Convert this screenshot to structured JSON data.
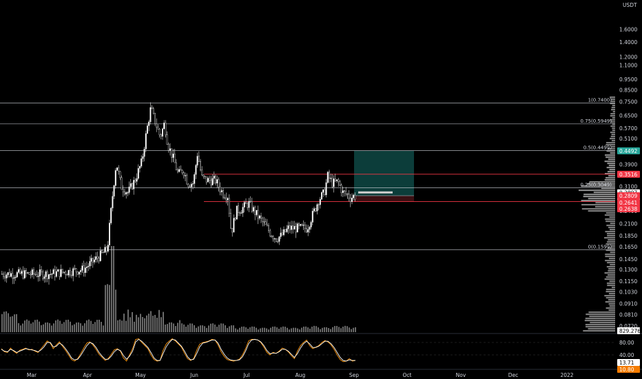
{
  "chart_data": [
    {
      "type": "candlestick",
      "title": "",
      "currency_label": "USDT",
      "scale": "log",
      "ylim": [
        0.0685,
        2.05
      ],
      "price_ticks": [
        "1.6000",
        "1.4000",
        "1.2000",
        "1.1000",
        "0.9500",
        "0.8500",
        "0.7500",
        "0.6500",
        "0.5700",
        "0.5100",
        "0.3900",
        "0.3100",
        "0.2400",
        "0.2100",
        "0.1850",
        "0.1650",
        "0.1450",
        "0.1300",
        "0.1150",
        "0.1030",
        "0.0910",
        "0.0810",
        "0.0720"
      ],
      "time_ticks": [
        "Mar",
        "Apr",
        "May",
        "Jun",
        "Jul",
        "Aug",
        "Sep",
        "Oct",
        "Nov",
        "Dec",
        "2022"
      ],
      "series_path": [
        [
          20,
          0.124
        ],
        [
          70,
          0.124
        ],
        [
          120,
          0.13
        ],
        [
          155,
          0.16
        ],
        [
          163,
          0.29
        ],
        [
          168,
          0.4
        ],
        [
          175,
          0.31
        ],
        [
          185,
          0.29
        ],
        [
          195,
          0.33
        ],
        [
          205,
          0.4
        ],
        [
          212,
          0.55
        ],
        [
          218,
          0.7
        ],
        [
          225,
          0.6
        ],
        [
          232,
          0.52
        ],
        [
          238,
          0.6
        ],
        [
          243,
          0.48
        ],
        [
          250,
          0.42
        ],
        [
          258,
          0.35
        ],
        [
          265,
          0.37
        ],
        [
          272,
          0.32
        ],
        [
          280,
          0.32
        ],
        [
          286,
          0.44
        ],
        [
          292,
          0.34
        ],
        [
          300,
          0.33
        ],
        [
          312,
          0.33
        ],
        [
          322,
          0.29
        ],
        [
          330,
          0.28
        ],
        [
          335,
          0.19
        ],
        [
          342,
          0.24
        ],
        [
          350,
          0.245
        ],
        [
          360,
          0.26
        ],
        [
          372,
          0.23
        ],
        [
          382,
          0.21
        ],
        [
          392,
          0.19
        ],
        [
          400,
          0.18
        ],
        [
          408,
          0.185
        ],
        [
          418,
          0.2
        ],
        [
          430,
          0.2
        ],
        [
          445,
          0.2
        ],
        [
          453,
          0.23
        ],
        [
          462,
          0.27
        ],
        [
          470,
          0.29
        ],
        [
          475,
          0.345
        ],
        [
          482,
          0.32
        ],
        [
          490,
          0.325
        ],
        [
          497,
          0.29
        ],
        [
          503,
          0.285
        ],
        [
          508,
          0.275
        ],
        [
          513,
          0.28
        ]
      ],
      "fib_levels": [
        {
          "label": "1(0.7400)",
          "value": 0.74,
          "color": "#d1d4dc"
        },
        {
          "label": "0.75(0.5949)",
          "value": 0.5949,
          "color": "#d1d4dc"
        },
        {
          "label": "0.5(0.4499)",
          "value": 0.4499,
          "color": "#d1d4dc"
        },
        {
          "label": "0.25(0.3049)",
          "value": 0.3049,
          "color": "#d1d4dc"
        },
        {
          "label": "0(0.1599)",
          "value": 0.1599,
          "color": "#d1d4dc"
        }
      ],
      "horizontal_lines": [
        {
          "value": 0.3516,
          "color": "#f23645"
        },
        {
          "value": 0.2641,
          "color": "#f23645"
        }
      ],
      "position": {
        "entry": 0.2809,
        "target": 0.4492,
        "stop": 0.2641,
        "start_time": "Sep",
        "end_time": "Oct",
        "profit_color": "#0c3d3a",
        "loss_color": "#3a0f12"
      },
      "price_labels": [
        {
          "text": "0.4492",
          "value": 0.4492,
          "bg": "#26a69a",
          "fg": "#ffffff"
        },
        {
          "text": "0.3516",
          "value": 0.3516,
          "bg": "#f23645",
          "fg": "#ffffff"
        },
        {
          "text": "0.2897",
          "value": 0.2897,
          "bg": "#ffffff",
          "fg": "#000000"
        },
        {
          "text": "04:58:21",
          "value": 0.2835,
          "bg": "#ffffff",
          "fg": "#000000"
        },
        {
          "text": "0.2809",
          "value": 0.2809,
          "bg": "#f23645",
          "fg": "#ffffff"
        },
        {
          "text": "0.2641",
          "value": 0.2641,
          "bg": "#f23645",
          "fg": "#ffffff"
        },
        {
          "text": "0.2638",
          "value": 0.2638,
          "bg": "#f23645",
          "fg": "#ffffff"
        }
      ],
      "volume_badge": "829.276K"
    },
    {
      "type": "line",
      "title": "",
      "ylim": [
        0,
        100
      ],
      "y_ticks": [
        "80.00",
        "40.00"
      ],
      "series": [
        {
          "color": "#ff9800",
          "values": [
            60,
            50,
            48,
            62,
            52,
            45,
            55,
            58,
            62,
            56,
            58,
            52,
            48,
            60,
            72,
            85,
            78,
            60,
            72,
            82,
            68,
            55,
            40,
            25,
            20,
            28,
            44,
            62,
            78,
            82,
            72,
            58,
            42,
            32,
            22,
            28,
            42,
            56,
            60,
            52,
            30,
            20,
            40,
            60,
            90,
            92,
            80,
            70,
            60,
            40,
            25,
            20,
            22,
            55,
            75,
            85,
            92,
            85,
            75,
            65,
            45,
            28,
            22,
            28,
            55,
            75,
            80,
            82,
            85,
            90,
            88,
            72,
            50,
            35,
            25,
            22,
            20,
            22,
            26,
            40,
            60,
            85,
            90,
            90,
            88,
            80,
            65,
            48,
            40,
            48,
            45,
            52,
            62,
            58,
            50,
            38,
            28,
            52,
            70,
            80,
            88,
            70,
            60,
            65,
            70,
            80,
            86,
            82,
            72,
            58,
            40,
            25,
            18,
            20,
            28,
            20,
            22
          ]
        },
        {
          "color": "#ffffff",
          "values": [
            58,
            52,
            50,
            58,
            54,
            48,
            52,
            56,
            60,
            58,
            56,
            54,
            50,
            56,
            66,
            80,
            80,
            66,
            68,
            78,
            72,
            60,
            46,
            30,
            24,
            26,
            38,
            54,
            70,
            80,
            76,
            64,
            48,
            36,
            26,
            26,
            36,
            50,
            58,
            54,
            38,
            26,
            36,
            52,
            82,
            90,
            84,
            74,
            64,
            48,
            30,
            22,
            22,
            44,
            66,
            80,
            90,
            88,
            78,
            68,
            52,
            34,
            24,
            26,
            44,
            66,
            78,
            80,
            84,
            88,
            88,
            78,
            58,
            42,
            30,
            24,
            22,
            22,
            24,
            34,
            52,
            76,
            88,
            90,
            88,
            82,
            70,
            54,
            44,
            46,
            45,
            50,
            58,
            58,
            52,
            42,
            32,
            44,
            62,
            76,
            84,
            76,
            64,
            64,
            68,
            76,
            84,
            84,
            76,
            64,
            48,
            32,
            22,
            20,
            24,
            22,
            22
          ]
        }
      ],
      "current_labels": [
        {
          "text": "13.71",
          "bg": "#ffffff",
          "fg": "#000000"
        },
        {
          "text": "10.80",
          "bg": "#f57c00",
          "fg": "#ffffff"
        }
      ]
    }
  ]
}
